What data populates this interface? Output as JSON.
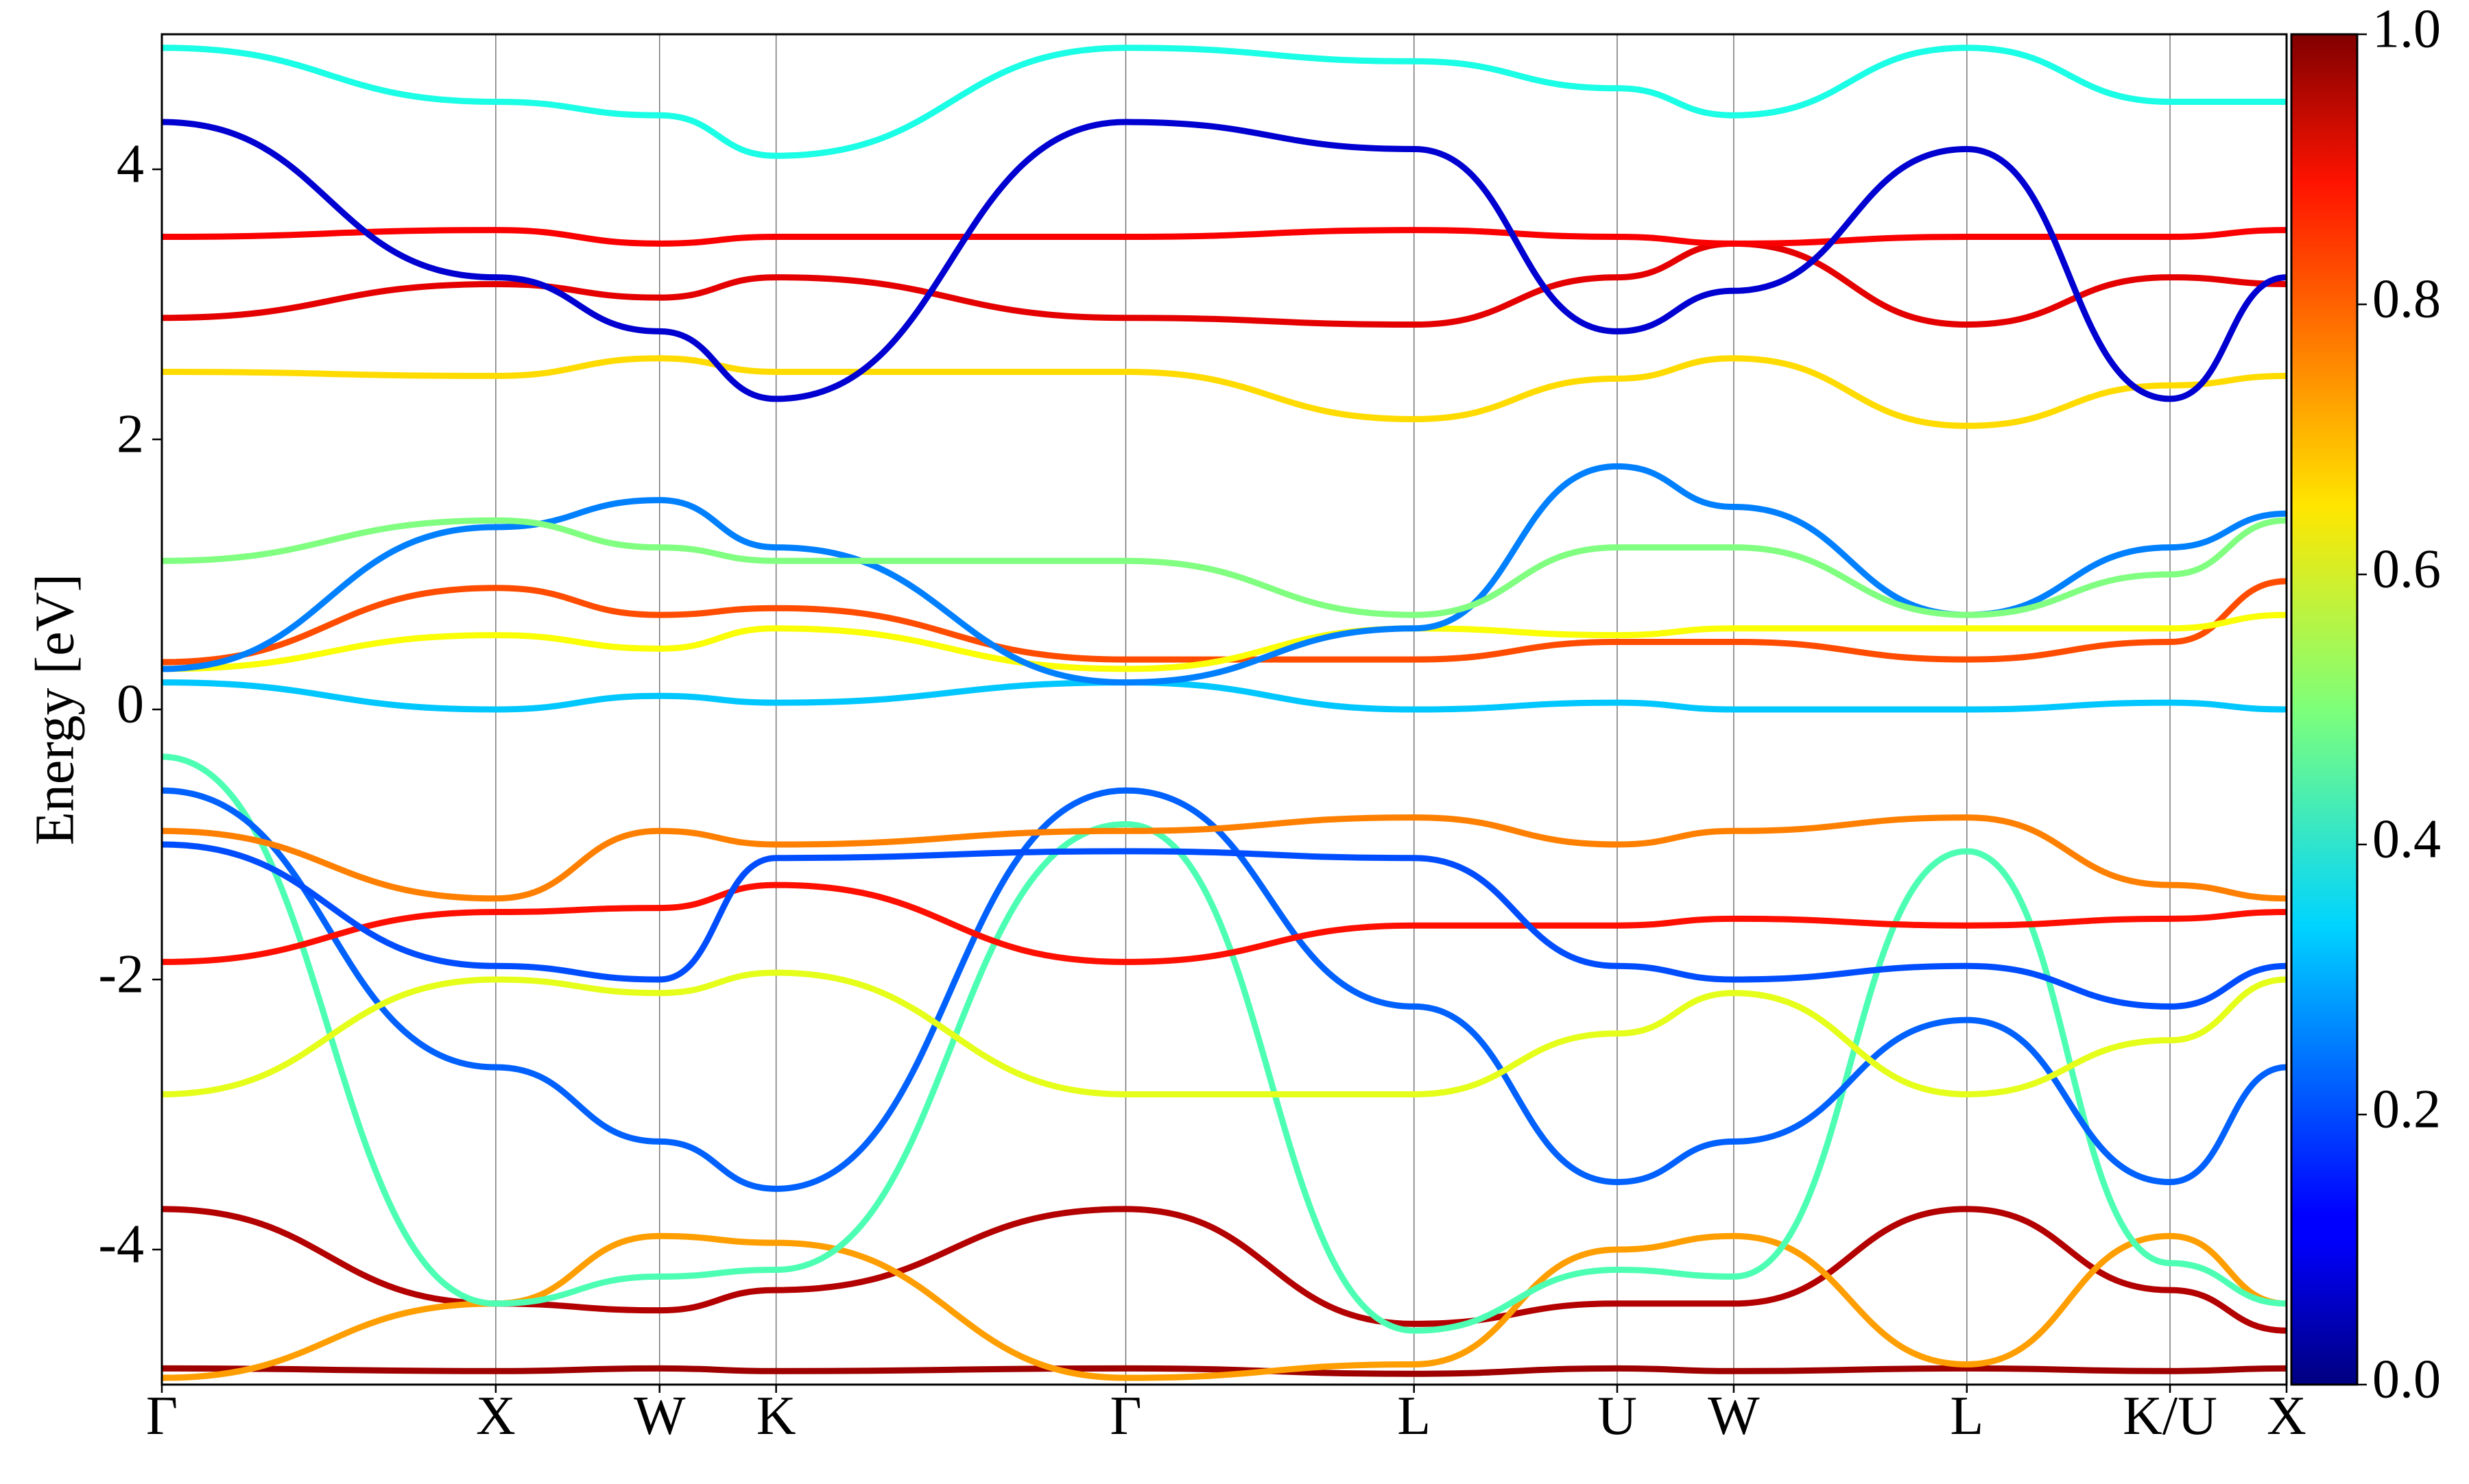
{
  "chart_data": {
    "type": "bands",
    "ylabel": "Energy [eV]",
    "x": [
      0,
      2.12,
      3.16,
      3.9,
      6.12,
      7.95,
      9.24,
      9.98,
      11.46,
      12.75,
      13.49
    ],
    "xlim": [
      0,
      13.49
    ],
    "xticks": [
      {
        "value": 0,
        "label": "Γ"
      },
      {
        "value": 2.12,
        "label": "X"
      },
      {
        "value": 3.16,
        "label": "W"
      },
      {
        "value": 3.9,
        "label": "K"
      },
      {
        "value": 6.12,
        "label": "Γ"
      },
      {
        "value": 7.95,
        "label": "L"
      },
      {
        "value": 9.24,
        "label": "U"
      },
      {
        "value": 9.98,
        "label": "W"
      },
      {
        "value": 11.46,
        "label": "L"
      },
      {
        "value": 12.75,
        "label": "K/U"
      },
      {
        "value": 13.49,
        "label": "X"
      }
    ],
    "ylim": [
      -5,
      5
    ],
    "yticks": [
      -4,
      -2,
      0,
      2,
      4
    ],
    "grid": true,
    "colormap": "jet",
    "clim": [
      0,
      1
    ],
    "cticks": [
      {
        "value": 0,
        "label": "0.0"
      },
      0.2,
      0.4,
      0.6,
      0.8,
      {
        "value": 1,
        "label": "1.0"
      }
    ],
    "series": [
      {
        "weight": 0.97,
        "values": [
          -4.88,
          -4.9,
          -4.88,
          -4.9,
          -4.88,
          -4.92,
          -4.88,
          -4.9,
          -4.88,
          -4.9,
          -4.88
        ]
      },
      {
        "weight": 0.95,
        "values": [
          -3.7,
          -4.4,
          -4.45,
          -4.3,
          -3.7,
          -4.55,
          -4.4,
          -4.4,
          -3.7,
          -4.3,
          -4.6
        ]
      },
      {
        "weight": 0.72,
        "values": [
          -4.95,
          -4.4,
          -3.9,
          -3.95,
          -4.95,
          -4.85,
          -4.0,
          -3.9,
          -4.85,
          -3.9,
          -4.4
        ]
      },
      {
        "weight": 0.45,
        "values": [
          -0.35,
          -4.4,
          -4.2,
          -4.15,
          -0.85,
          -4.6,
          -4.15,
          -4.2,
          -1.05,
          -4.1,
          -4.4
        ]
      },
      {
        "weight": 0.22,
        "values": [
          -0.6,
          -2.65,
          -3.2,
          -3.55,
          -0.6,
          -2.2,
          -3.5,
          -3.2,
          -2.3,
          -3.5,
          -2.65
        ]
      },
      {
        "weight": 0.6,
        "values": [
          -2.85,
          -2.0,
          -2.1,
          -1.95,
          -2.85,
          -2.85,
          -2.4,
          -2.1,
          -2.85,
          -2.45,
          -2.0
        ]
      },
      {
        "weight": 0.86,
        "values": [
          -1.87,
          -1.5,
          -1.47,
          -1.3,
          -1.87,
          -1.6,
          -1.6,
          -1.55,
          -1.6,
          -1.55,
          -1.5
        ]
      },
      {
        "weight": 0.75,
        "values": [
          -0.9,
          -1.4,
          -0.9,
          -1.0,
          -0.9,
          -0.8,
          -1.0,
          -0.9,
          -0.8,
          -1.3,
          -1.4
        ]
      },
      {
        "weight": 0.2,
        "values": [
          -1.0,
          -1.9,
          -2.0,
          -1.1,
          -1.05,
          -1.1,
          -1.9,
          -2.0,
          -1.9,
          -2.2,
          -1.9
        ]
      },
      {
        "weight": 0.32,
        "values": [
          0.2,
          0.0,
          0.1,
          0.05,
          0.2,
          0.0,
          0.05,
          0.0,
          0.0,
          0.05,
          0.0
        ]
      },
      {
        "weight": 0.8,
        "values": [
          0.35,
          0.9,
          0.7,
          0.75,
          0.37,
          0.37,
          0.5,
          0.5,
          0.37,
          0.5,
          0.95
        ]
      },
      {
        "weight": 0.62,
        "values": [
          0.3,
          0.55,
          0.45,
          0.6,
          0.3,
          0.6,
          0.55,
          0.6,
          0.6,
          0.6,
          0.7
        ]
      },
      {
        "weight": 0.25,
        "values": [
          0.3,
          1.35,
          1.55,
          1.2,
          0.2,
          0.6,
          1.8,
          1.5,
          0.7,
          1.2,
          1.45
        ]
      },
      {
        "weight": 0.5,
        "values": [
          1.1,
          1.4,
          1.2,
          1.1,
          1.1,
          0.7,
          1.2,
          1.2,
          0.7,
          1.0,
          1.4
        ]
      },
      {
        "weight": 0.66,
        "values": [
          2.5,
          2.47,
          2.6,
          2.5,
          2.5,
          2.15,
          2.45,
          2.6,
          2.1,
          2.4,
          2.47
        ]
      },
      {
        "weight": 0.9,
        "values": [
          2.9,
          3.15,
          3.05,
          3.2,
          2.9,
          2.85,
          3.2,
          3.45,
          2.85,
          3.2,
          3.15
        ]
      },
      {
        "weight": 0.88,
        "values": [
          3.5,
          3.55,
          3.45,
          3.5,
          3.5,
          3.55,
          3.5,
          3.45,
          3.5,
          3.5,
          3.55
        ]
      },
      {
        "weight": 0.08,
        "values": [
          4.35,
          3.2,
          2.8,
          2.3,
          4.35,
          4.15,
          2.8,
          3.1,
          4.15,
          2.3,
          3.2
        ]
      },
      {
        "weight": 0.4,
        "values": [
          4.9,
          4.5,
          4.4,
          4.1,
          4.9,
          4.8,
          4.6,
          4.4,
          4.9,
          4.5,
          4.5
        ]
      }
    ]
  }
}
